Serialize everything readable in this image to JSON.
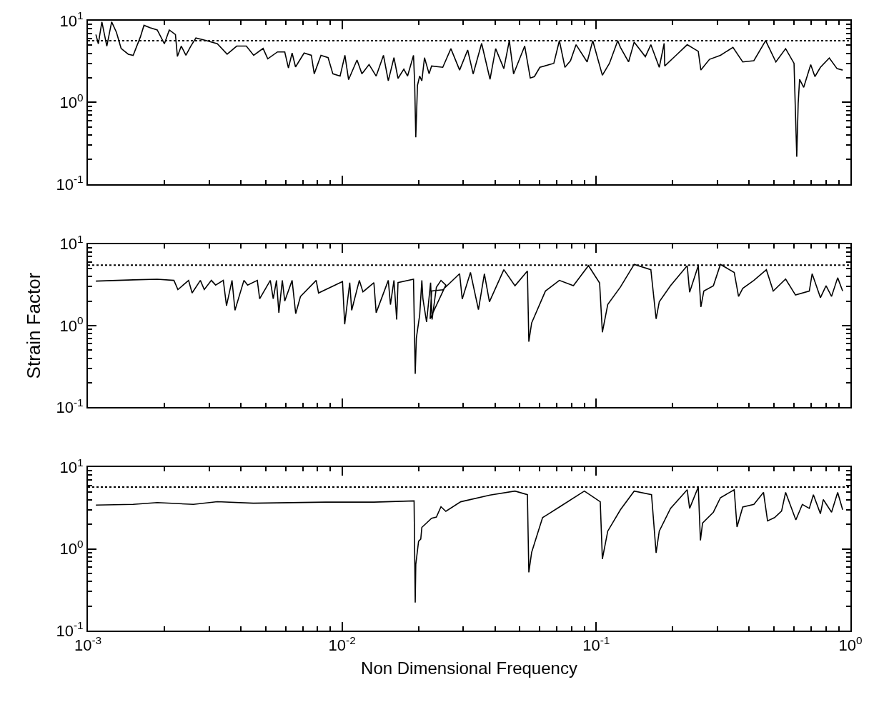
{
  "chart_data": [
    {
      "type": "line",
      "xlim": [
        0.001,
        1
      ],
      "ylim": [
        0.1,
        10
      ],
      "log": "xy",
      "grid": false,
      "marker": "none",
      "line_style": "solid",
      "tick_labels": "y",
      "xticks": [
        {
          "value": 0.001,
          "label": null
        },
        {
          "value": 0.01,
          "label": null
        },
        {
          "value": 0.1,
          "label": null
        },
        {
          "value": 1,
          "label": null
        }
      ],
      "yticks": [
        {
          "value": 0.1,
          "label": "10$^{-1}$"
        },
        {
          "value": 1,
          "label": "10$^{0}$"
        },
        {
          "value": 10,
          "label": "10$^{1}$"
        }
      ],
      "ref_lines": [
        {
          "axis": "y",
          "value": 5.7,
          "color": "#000000",
          "line_style": "dotted"
        }
      ],
      "series": [
        {
          "color": "#000000",
          "x": [
            0.932,
            0.886,
            0.826,
            0.762,
            0.725,
            0.698,
            0.655,
            0.631,
            0.623,
            0.615,
            0.608,
            0.6,
            0.556,
            0.509,
            0.464,
            0.417,
            0.377,
            0.345,
            0.308,
            0.279,
            0.258,
            0.252,
            0.228,
            0.206,
            0.186,
            0.185,
            0.177,
            0.164,
            0.156,
            0.141,
            0.134,
            0.1245,
            0.1215,
            0.1127,
            0.1057,
            0.1019,
            0.0969,
            0.0921,
            0.0833,
            0.0792,
            0.0753,
            0.0716,
            0.0681,
            0.06,
            0.0571,
            0.055,
            0.0523,
            0.0473,
            0.0455,
            0.0433,
            0.0402,
            0.0382,
            0.0354,
            0.0328,
            0.0312,
            0.029,
            0.0268,
            0.0249,
            0.0225,
            0.022,
            0.0211,
            0.0206,
            0.0202,
            0.0198,
            0.0195,
            0.0193,
            0.0191,
            0.0181,
            0.0175,
            0.0166,
            0.016,
            0.0152,
            0.01455,
            0.01362,
            0.01277,
            0.01197,
            0.01145,
            0.01061,
            0.01026,
            0.00982,
            0.0092,
            0.00881,
            0.00826,
            0.00777,
            0.00757,
            0.00709,
            0.00656,
            0.00636,
            0.00615,
            0.00595,
            0.00557,
            0.0051,
            0.00489,
            0.00449,
            0.0042,
            0.00385,
            0.00353,
            0.00323,
            0.0029,
            0.00266,
            0.00254,
            0.00243,
            0.00233,
            0.00225,
            0.00221,
            0.00209,
            0.002,
            0.001874,
            0.001754,
            0.001662,
            0.001609,
            0.001507,
            0.001442,
            0.001351,
            0.001295,
            0.00124,
            0.001187,
            0.001135,
            0.001099,
            0.001075
          ],
          "values": [
            2.49,
            2.59,
            3.5,
            2.69,
            2.07,
            2.9,
            1.53,
            1.92,
            0.977,
            0.217,
            0.723,
            3.01,
            4.55,
            3.13,
            5.7,
            3.24,
            3.13,
            4.72,
            3.77,
            3.37,
            2.49,
            4.22,
            5.09,
            3.77,
            2.79,
            5.28,
            2.69,
            5.09,
            3.63,
            5.48,
            3.13,
            4.72,
            5.7,
            3.01,
            2.15,
            3.24,
            5.7,
            3.13,
            5.09,
            3.24,
            2.69,
            5.7,
            3.01,
            2.69,
            2.07,
            1.99,
            4.9,
            2.23,
            5.7,
            2.59,
            4.55,
            1.92,
            5.28,
            2.23,
            4.38,
            2.49,
            4.55,
            2.69,
            2.79,
            2.24,
            3.53,
            1.84,
            2.1,
            1.62,
            0.375,
            1.73,
            3.77,
            2.1,
            2.55,
            1.97,
            3.53,
            1.84,
            3.77,
            2.1,
            2.91,
            2.24,
            3.31,
            1.9,
            3.77,
            2.1,
            2.24,
            3.53,
            3.77,
            2.24,
            3.77,
            4.02,
            2.72,
            4.02,
            2.64,
            4.15,
            4.15,
            3.42,
            4.58,
            3.77,
            4.89,
            4.89,
            3.89,
            5.22,
            5.75,
            6.14,
            4.89,
            3.77,
            4.89,
            3.65,
            6.77,
            7.71,
            5.22,
            7.71,
            8.22,
            8.79,
            6.34,
            3.77,
            3.89,
            4.58,
            7.22,
            9.68,
            4.89,
            9.68,
            5.22,
            6.77
          ]
        }
      ]
    },
    {
      "type": "line",
      "xlim": [
        0.001,
        1
      ],
      "ylim": [
        0.1,
        10
      ],
      "log": "xy",
      "grid": false,
      "marker": "none",
      "line_style": "solid",
      "tick_labels": "y",
      "ylabel": "Strain Factor",
      "xticks": [
        {
          "value": 0.001,
          "label": null
        },
        {
          "value": 0.01,
          "label": null
        },
        {
          "value": 0.1,
          "label": null
        },
        {
          "value": 1,
          "label": null
        }
      ],
      "yticks": [
        {
          "value": 0.1,
          "label": "10$^{-1}$"
        },
        {
          "value": 1,
          "label": "10$^{0}$"
        },
        {
          "value": 10,
          "label": "10$^{1}$"
        }
      ],
      "ref_lines": [
        {
          "axis": "y",
          "value": 5.5,
          "color": "#000000",
          "line_style": "dotted"
        }
      ],
      "series": [
        {
          "color": "#000000",
          "x": [
            0.932,
            0.891,
            0.843,
            0.802,
            0.762,
            0.707,
            0.689,
            0.608,
            0.556,
            0.497,
            0.467,
            0.417,
            0.377,
            0.363,
            0.349,
            0.308,
            0.289,
            0.265,
            0.258,
            0.252,
            0.233,
            0.228,
            0.196,
            0.177,
            0.172,
            0.164,
            0.141,
            0.1245,
            0.111,
            0.1057,
            0.1031,
            0.0932,
            0.0813,
            0.0716,
            0.0631,
            0.0557,
            0.0543,
            0.0536,
            0.0479,
            0.0433,
            0.038,
            0.0363,
            0.0344,
            0.032,
            0.0297,
            0.029,
            0.0249,
            0.0225,
            0.0222,
            0.0256,
            0.0245,
            0.0235,
            0.0226,
            0.0223,
            0.0215,
            0.0208,
            0.0206,
            0.0202,
            0.0196,
            0.0194,
            0.0191,
            0.0166,
            0.0164,
            0.016,
            0.0155,
            0.0152,
            0.01362,
            0.01334,
            0.01208,
            0.01169,
            0.01091,
            0.01072,
            0.01024,
            0.01004,
            0.00808,
            0.00791,
            0.00686,
            0.00657,
            0.00636,
            0.00595,
            0.00582,
            0.00564,
            0.00552,
            0.00536,
            0.00522,
            0.00474,
            0.00464,
            0.00425,
            0.00411,
            0.00379,
            0.00369,
            0.00351,
            0.00341,
            0.00318,
            0.00306,
            0.00287,
            0.00277,
            0.00257,
            0.00249,
            0.00226,
            0.00218,
            0.001874,
            0.001507,
            0.001075
          ],
          "values": [
            2.65,
            3.86,
            2.28,
            3.08,
            2.2,
            4.32,
            2.65,
            2.37,
            3.72,
            2.65,
            4.84,
            3.58,
            2.86,
            2.28,
            4.48,
            5.62,
            3.08,
            2.65,
            1.69,
            5.42,
            2.56,
            5.42,
            3.08,
            1.96,
            1.21,
            4.84,
            5.62,
            2.97,
            1.82,
            0.829,
            3.33,
            5.42,
            3.08,
            3.58,
            2.65,
            1.08,
            0.637,
            4.66,
            3.08,
            4.84,
            1.96,
            4.32,
            1.57,
            4.48,
            2.12,
            4.32,
            2.75,
            2.65,
            1.21,
            3.14,
            3.58,
            2.95,
            1.19,
            3.36,
            1.11,
            2.13,
            3.58,
            1.35,
            0.705,
            0.257,
            3.7,
            3.36,
            1.19,
            3.58,
            1.81,
            3.58,
            1.44,
            3.36,
            2.59,
            3.58,
            1.54,
            3.36,
            1.04,
            3.47,
            2.51,
            3.58,
            2.27,
            1.4,
            3.58,
            2.0,
            3.58,
            1.44,
            3.58,
            2.13,
            3.58,
            2.13,
            3.58,
            3.14,
            3.58,
            1.54,
            3.58,
            1.75,
            3.58,
            3.14,
            3.58,
            2.76,
            3.58,
            2.51,
            3.58,
            2.76,
            3.58,
            3.7,
            3.63,
            3.51
          ]
        }
      ]
    },
    {
      "type": "line",
      "xlim": [
        0.001,
        1
      ],
      "ylim": [
        0.1,
        10
      ],
      "log": "xy",
      "grid": false,
      "marker": "none",
      "line_style": "solid",
      "xlabel": "Non Dimensional Frequency",
      "xticks": [
        {
          "value": 0.001,
          "label": "10$^{-3}$"
        },
        {
          "value": 0.01,
          "label": "10$^{-2}$"
        },
        {
          "value": 0.1,
          "label": "10$^{-1}$"
        },
        {
          "value": 1,
          "label": "10$^{0}$"
        }
      ],
      "yticks": [
        {
          "value": 0.1,
          "label": "10$^{-1}$"
        },
        {
          "value": 1,
          "label": "10$^{0}$"
        },
        {
          "value": 10,
          "label": "10$^{1}$"
        }
      ],
      "ref_lines": [
        {
          "axis": "y",
          "value": 5.7,
          "color": "#000000",
          "line_style": "dotted"
        }
      ],
      "series": [
        {
          "color": "#000000",
          "x": [
            0.932,
            0.891,
            0.843,
            0.782,
            0.762,
            0.715,
            0.689,
            0.647,
            0.61,
            0.556,
            0.536,
            0.503,
            0.472,
            0.455,
            0.417,
            0.377,
            0.358,
            0.349,
            0.308,
            0.289,
            0.262,
            0.257,
            0.252,
            0.233,
            0.228,
            0.196,
            0.177,
            0.172,
            0.165,
            0.141,
            0.1245,
            0.111,
            0.1057,
            0.1037,
            0.0898,
            0.0716,
            0.0615,
            0.0557,
            0.0543,
            0.0536,
            0.0479,
            0.0382,
            0.0293,
            0.0256,
            0.0245,
            0.0235,
            0.0225,
            0.0206,
            0.0204,
            0.02,
            0.0195,
            0.0194,
            0.0192,
            0.01334,
            0.00862,
            0.00448,
            0.00323,
            0.0026,
            0.001874,
            0.001507,
            0.001075
          ],
          "values": [
            3.01,
            4.91,
            2.81,
            4.01,
            2.69,
            4.6,
            3.13,
            3.5,
            2.26,
            4.91,
            2.9,
            2.41,
            2.2,
            4.91,
            3.5,
            3.25,
            1.85,
            5.29,
            4.22,
            2.81,
            2.07,
            1.27,
            5.7,
            3.13,
            5.29,
            3.13,
            1.65,
            0.893,
            4.6,
            5.09,
            3.01,
            1.65,
            0.752,
            3.77,
            5.09,
            3.25,
            2.41,
            0.907,
            0.516,
            4.6,
            5.09,
            4.55,
            3.77,
            2.88,
            3.28,
            2.45,
            2.37,
            1.83,
            1.32,
            1.24,
            0.644,
            0.22,
            3.86,
            3.73,
            3.73,
            3.62,
            3.78,
            3.5,
            3.69,
            3.5,
            3.43
          ]
        }
      ]
    }
  ]
}
